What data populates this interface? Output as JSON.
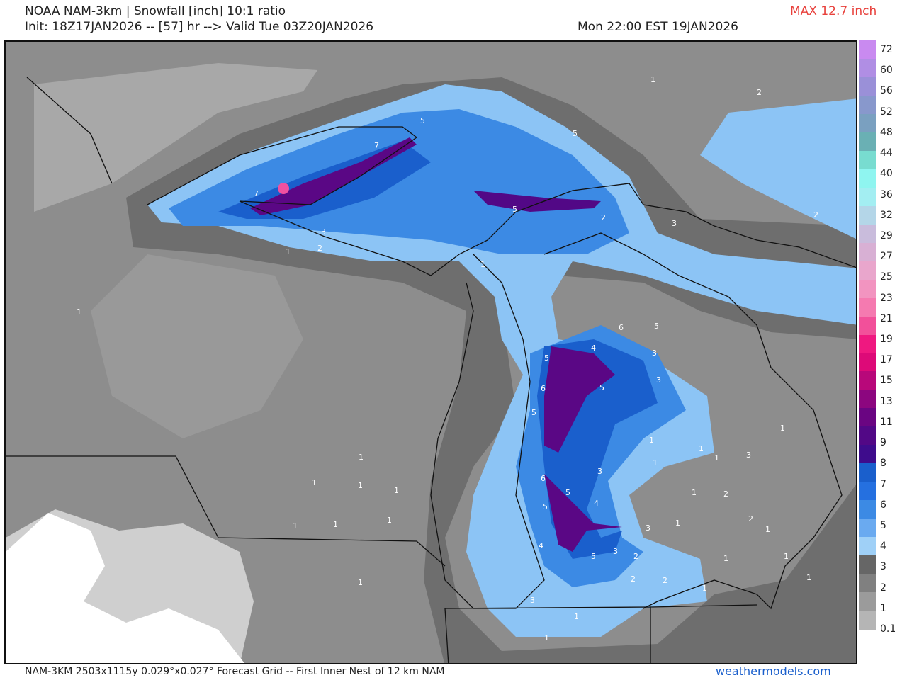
{
  "header": {
    "title": "NOAA NAM-3km | Snowfall [inch] 10:1 ratio",
    "init_line": "Init: 18Z17JAN2026 -- [57] hr --> Valid Tue 03Z20JAN2026",
    "local_time": "Mon 22:00 EST 19JAN2026",
    "max_label": "MAX 12.7 inch",
    "max_color": "#e8413c"
  },
  "colorbar": {
    "ticks": [
      "72",
      "60",
      "56",
      "52",
      "48",
      "44",
      "40",
      "36",
      "32",
      "29",
      "27",
      "25",
      "23",
      "21",
      "19",
      "17",
      "15",
      "13",
      "11",
      "9",
      "8",
      "7",
      "6",
      "5",
      "4",
      "3",
      "2",
      "1",
      "0.1"
    ],
    "colors": [
      "#c98af0",
      "#b08ee4",
      "#9a90d8",
      "#8898cc",
      "#7aa0c0",
      "#6ab0b4",
      "#78dcd0",
      "#8ff5f0",
      "#a3eef2",
      "#b4d6e8",
      "#c9bcdc",
      "#d8b0d4",
      "#e9a6cc",
      "#f294c0",
      "#f57ab0",
      "#f2509a",
      "#ef1880",
      "#dd0a78",
      "#b8087a",
      "#8c067f",
      "#6a0582",
      "#520886",
      "#3e0c8c",
      "#1a5fcc",
      "#2570e0",
      "#3c8ae4",
      "#6aaaf0",
      "#9fd0f7",
      "#666666",
      "#808080",
      "#9b9b9b",
      "#b5b5b5"
    ]
  },
  "map": {
    "contour_labels": [
      "7",
      "7",
      "5",
      "5",
      "5",
      "1",
      "2",
      "3",
      "2",
      "3",
      "1",
      "2",
      "2",
      "1",
      "1",
      "6",
      "5",
      "4",
      "5",
      "6",
      "5",
      "3",
      "3",
      "5",
      "5",
      "6",
      "5",
      "4",
      "3",
      "3",
      "4",
      "5",
      "3",
      "2",
      "2",
      "2",
      "1",
      "1",
      "1",
      "1",
      "1",
      "1",
      "1",
      "1",
      "1",
      "1",
      "1",
      "1",
      "1",
      "1",
      "1",
      "1",
      "2",
      "3",
      "3",
      "1",
      "1",
      "1",
      "1",
      "1",
      "1",
      "2"
    ]
  },
  "footer": {
    "grid_info": "NAM-3KM 2503x1115y 0.029°x0.027° Forecast Grid -- First Inner Nest of 12 km NAM",
    "brand": "weathermodels.com",
    "brand_color": "#1a5fcc"
  }
}
